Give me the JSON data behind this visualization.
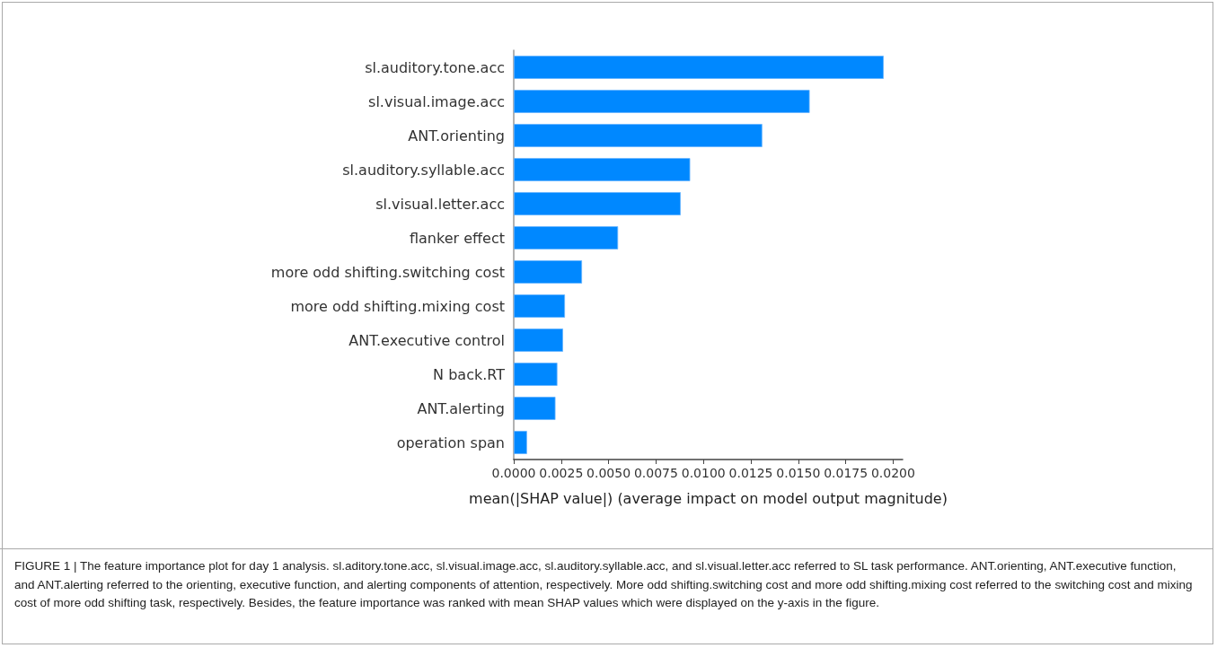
{
  "chart_data": {
    "type": "bar",
    "orientation": "horizontal",
    "xlabel": "mean(|SHAP value|) (average impact on model output magnitude)",
    "categories": [
      "sl.auditory.tone.acc",
      "sl.visual.image.acc",
      "ANT.orienting",
      "sl.auditory.syllable.acc",
      "sl.visual.letter.acc",
      "flanker effect",
      "more odd shifting.switching cost",
      "more odd shifting.mixing cost",
      "ANT.executive control",
      "N back.RT",
      "ANT.alerting",
      "operation span"
    ],
    "values": [
      0.0195,
      0.0156,
      0.0131,
      0.0093,
      0.0088,
      0.0055,
      0.0036,
      0.0027,
      0.0026,
      0.0023,
      0.0022,
      0.0007
    ],
    "color": "#0088ff",
    "xlim": [
      0,
      0.0205
    ],
    "xticks": [
      {
        "value": 0,
        "label": "0.0000"
      },
      {
        "value": 0.0025,
        "label": "0.0025"
      },
      {
        "value": 0.005,
        "label": "0.0050"
      },
      {
        "value": 0.0075,
        "label": "0.0075"
      },
      {
        "value": 0.01,
        "label": "0.0100"
      },
      {
        "value": 0.0125,
        "label": "0.0125"
      },
      {
        "value": 0.015,
        "label": "0.0150"
      },
      {
        "value": 0.0175,
        "label": "0.0175"
      },
      {
        "value": 0.02,
        "label": "0.0200"
      }
    ],
    "grid": false,
    "annotations": [
      "FIGURE 1 | The feature importance plot for day 1 analysis. sl.aditory.tone.acc, sl.visual.image.acc, sl.auditory.syllable.acc, and sl.visual.letter.acc referred to SL task performance. ANT.orienting, ANT.executive function, and ANT.alerting referred to the orienting, executive function, and alerting components of attention, respectively. More odd shifting.switching cost and more odd shifting.mixing cost referred to the switching cost and mixing cost of more odd shifting task, respectively. Besides, the feature importance was ranked with mean SHAP values which were displayed on the y-axis in the figure."
    ]
  }
}
